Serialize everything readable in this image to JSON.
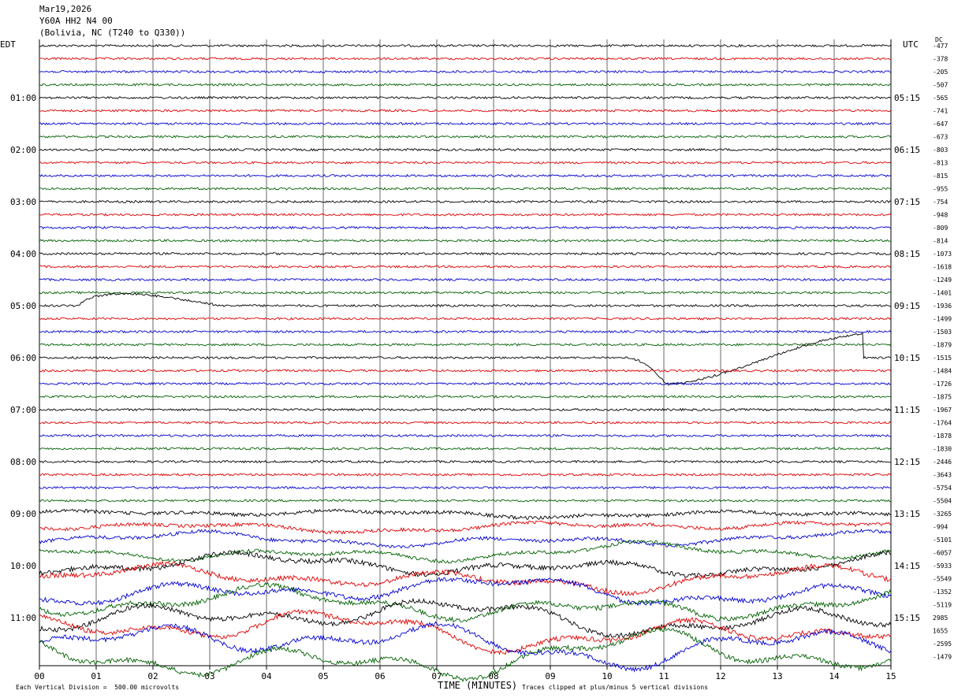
{
  "header": {
    "date": "Mar19,2026",
    "station": "Y60A HH2 N4 00",
    "location": "(Bolivia, NC (T240 to Q330))"
  },
  "axes": {
    "left_title": "EDT",
    "right_title": "UTC",
    "dc_title": "DC",
    "xlabel": "TIME (MINUTES)"
  },
  "footer": {
    "scale_note": "Each Vertical Division =  500.00 microvolts",
    "clip_note": "Traces clipped at plus/minus 5 vertical divisions"
  },
  "chart_data": {
    "type": "line",
    "title": "Y60A HH2 N4 00",
    "x_ticks": [
      "00",
      "01",
      "02",
      "03",
      "04",
      "05",
      "06",
      "07",
      "08",
      "09",
      "10",
      "11",
      "12",
      "13",
      "14",
      "15"
    ],
    "xlim": [
      0,
      15
    ],
    "left_hour_labels": [
      "01:00",
      "02:00",
      "03:00",
      "04:00",
      "05:00",
      "06:00",
      "07:00",
      "08:00",
      "09:00",
      "10:00",
      "11:00"
    ],
    "right_hour_labels": [
      "05:15",
      "06:15",
      "07:15",
      "08:15",
      "09:15",
      "10:15",
      "11:15",
      "12:15",
      "13:15",
      "14:15",
      "15:15"
    ],
    "trace_colors": [
      "#000000",
      "#e00000",
      "#0000d0",
      "#006000"
    ],
    "dc_offsets": [
      -477,
      -378,
      -205,
      -507,
      -565,
      -741,
      -647,
      -673,
      -803,
      -813,
      -815,
      -955,
      -754,
      -948,
      -809,
      -814,
      -1073,
      -1618,
      -1249,
      -1401,
      -1936,
      -1499,
      -1503,
      -1879,
      -1515,
      -1484,
      -1726,
      -1875,
      -1967,
      -1764,
      -1878,
      -1830,
      -2446,
      -3643,
      -5754,
      -5504,
      -3265,
      -994,
      -5101,
      -6057,
      -5933,
      -5549,
      -1352,
      -5119,
      2985,
      1655,
      -2595,
      -1479
    ],
    "trace_count": 48,
    "vertical_division_microvolts": 500,
    "clip_divisions": 5,
    "notable_events": [
      {
        "trace_index": 20,
        "start_min": 0.7,
        "end_min": 3.2,
        "description": "long-period bulge"
      },
      {
        "trace_index": 24,
        "start_min": 10.3,
        "end_min": 14.5,
        "description": "long-period dip and recovery"
      }
    ]
  }
}
